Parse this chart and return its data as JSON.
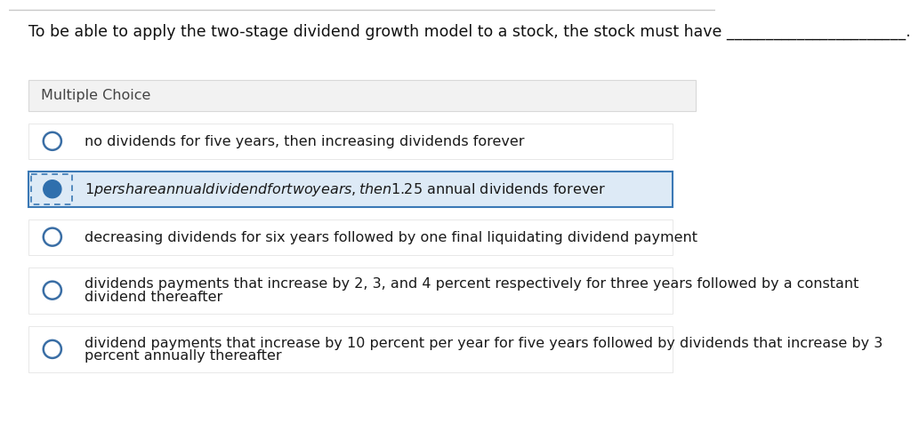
{
  "question": "To be able to apply the two-stage dividend growth model to a stock, the stock must have _______________________.",
  "section_label": "Multiple Choice",
  "choices": [
    {
      "lines": [
        "no dividends for five years, then increasing dividends forever"
      ],
      "selected": false
    },
    {
      "lines": [
        "$1 per share annual dividend for two years, then $1.25 annual dividends forever"
      ],
      "selected": true
    },
    {
      "lines": [
        "decreasing dividends for six years followed by one final liquidating dividend payment"
      ],
      "selected": false
    },
    {
      "lines": [
        "dividends payments that increase by 2, 3, and 4 percent respectively for three years followed by a constant",
        "dividend thereafter"
      ],
      "selected": false
    },
    {
      "lines": [
        "dividend payments that increase by 10 percent per year for five years followed by dividends that increase by 3",
        "percent annually thereafter"
      ],
      "selected": false
    }
  ],
  "bg_color": "#ffffff",
  "top_border_color": "#c8c8c8",
  "section_bg": "#f2f2f2",
  "section_border": "#d8d8d8",
  "choice_bg_normal": "#ffffff",
  "choice_bg_selected": "#ddeaf6",
  "choice_border_normal": "#e4e4e4",
  "choice_border_selected": "#3a78b5",
  "radio_stroke": "#3a6ea5",
  "radio_fill": "#2f6fad",
  "text_color": "#1a1a1a",
  "section_text_color": "#444444",
  "question_color": "#111111",
  "font_size_question": 12.5,
  "font_size_section": 11.5,
  "font_size_choice": 11.5
}
